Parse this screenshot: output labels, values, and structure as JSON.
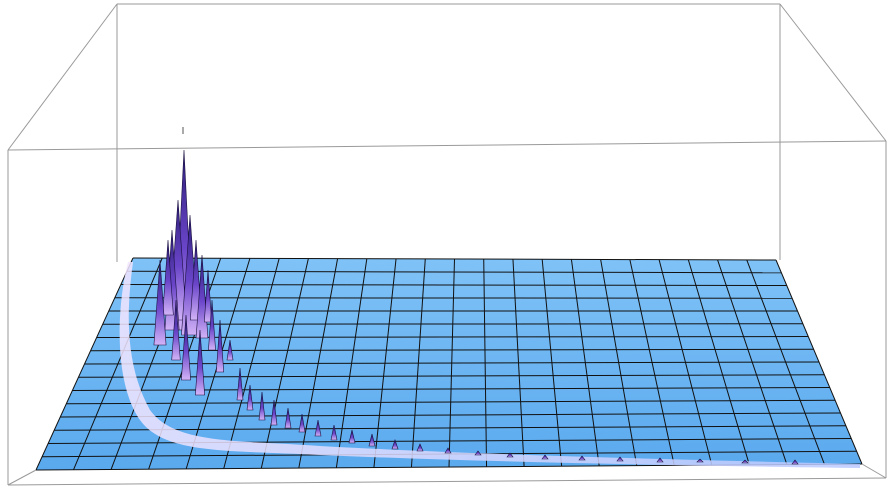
{
  "plot": {
    "type": "3d-surface",
    "box_frame": true,
    "axes_labels_visible": false,
    "mesh_lines": {
      "rows": 16,
      "cols": 22
    },
    "colors": {
      "surface_base": "#5fb0f2",
      "surface_light": "#8fcbfb",
      "peak_dark": "#3f2a8c",
      "peak_mid": "#6a45c9",
      "peak_light": "#c9a6f5",
      "mesh": "#111111",
      "frame": "#9a9a9a"
    }
  }
}
